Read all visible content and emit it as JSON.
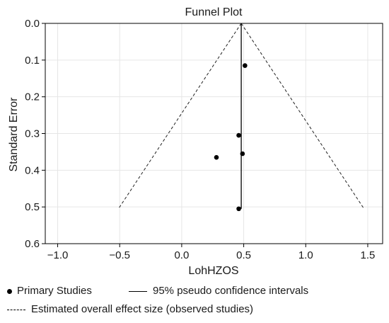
{
  "chart_data": {
    "type": "scatter",
    "title": "Funnel Plot",
    "xlabel": "LohHZOS",
    "ylabel": "Standard Error",
    "xlim": [
      -1.1,
      1.62
    ],
    "ylim": [
      0.6,
      0.0
    ],
    "y_inverted": true,
    "grid": true,
    "x_ticks": [
      -1.0,
      -0.5,
      0.0,
      0.5,
      1.0,
      1.5
    ],
    "x_tick_labels": [
      "−1.0",
      "−0.5",
      "0.0",
      "0.5",
      "1.0",
      "1.5"
    ],
    "y_ticks": [
      0.0,
      0.1,
      0.2,
      0.3,
      0.4,
      0.5,
      0.6
    ],
    "y_tick_labels": [
      "0.0",
      "0.1",
      "0.2",
      "0.3",
      "0.4",
      "0.5",
      "0.6"
    ],
    "series": [
      {
        "name": "Primary Studies",
        "kind": "points",
        "x": [
          0.51,
          0.46,
          0.49,
          0.28,
          0.46
        ],
        "y": [
          0.115,
          0.305,
          0.355,
          0.365,
          0.505
        ]
      }
    ],
    "overall_effect": {
      "x": 0.48,
      "se_range": [
        0.0,
        0.505
      ]
    },
    "pseudo_ci": {
      "apex": [
        0.48,
        0.0
      ],
      "left_base": [
        -0.51,
        0.505
      ],
      "right_base": [
        1.47,
        0.505
      ]
    },
    "legend": {
      "placement": "bottom",
      "entries": [
        {
          "label": "Primary Studies",
          "marker": "dot"
        },
        {
          "label": "95% pseudo confidence intervals",
          "marker": "solid-line"
        },
        {
          "label": "Estimated overall effect size (observed studies)",
          "marker": "dashed-line"
        }
      ]
    }
  }
}
